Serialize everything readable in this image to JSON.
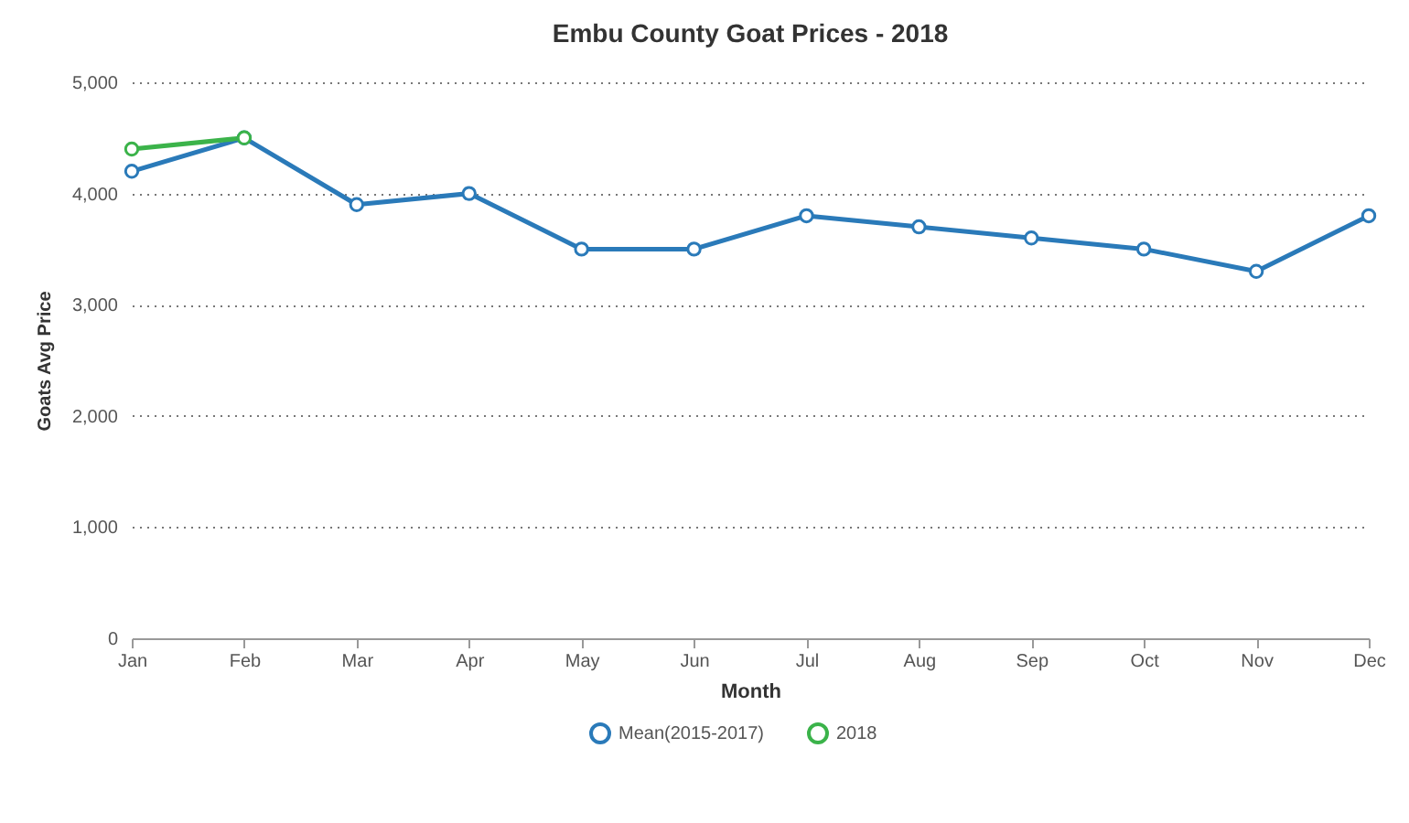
{
  "chart_data": {
    "type": "line",
    "title": "Embu County Goat Prices - 2018",
    "xlabel": "Month",
    "ylabel": "Goats Avg Price",
    "categories": [
      "Jan",
      "Feb",
      "Mar",
      "Apr",
      "May",
      "Jun",
      "Jul",
      "Aug",
      "Sep",
      "Oct",
      "Nov",
      "Dec"
    ],
    "series": [
      {
        "name": "Mean(2015-2017)",
        "color": "#2a7ab9",
        "values": [
          4200,
          4500,
          3900,
          4000,
          3500,
          3500,
          3800,
          3700,
          3600,
          3500,
          3300,
          3800
        ]
      },
      {
        "name": "2018",
        "color": "#3bb34a",
        "values": [
          4400,
          4500,
          null,
          null,
          null,
          null,
          null,
          null,
          null,
          null,
          null,
          null
        ]
      }
    ],
    "ylim": [
      0,
      5000
    ],
    "yticks": [
      0,
      {
        "value": 1000,
        "label": "1,000"
      },
      {
        "value": 2000,
        "label": "2,000"
      },
      {
        "value": 3000,
        "label": "3,000"
      },
      {
        "value": 4000,
        "label": "4,000"
      },
      {
        "value": 5000,
        "label": "5,000"
      }
    ],
    "grid": "y",
    "legend": "bottom",
    "marker": "circle",
    "line_style": "solid"
  }
}
